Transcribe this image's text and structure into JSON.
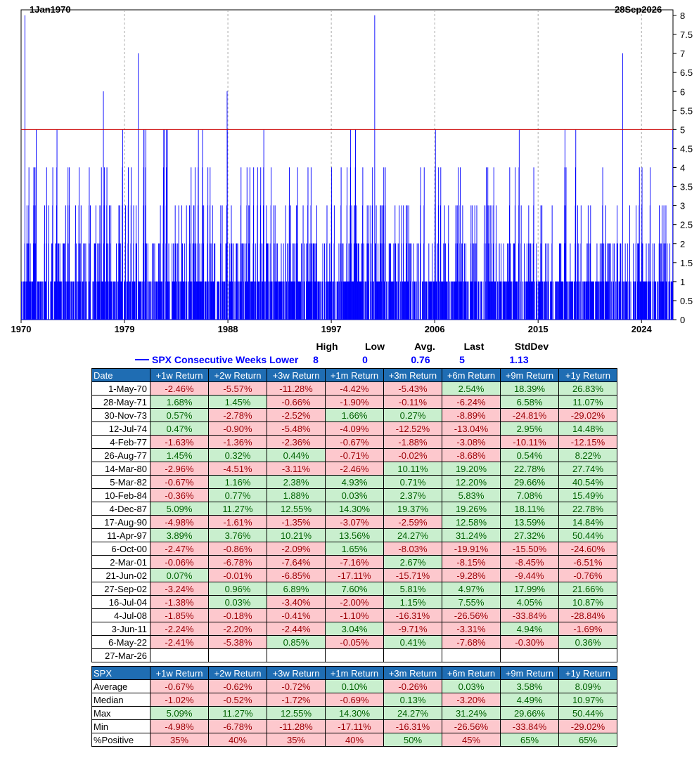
{
  "header": {
    "start_date": "1Jan1970",
    "end_date": "28Sep2026"
  },
  "legend": {
    "series_name": "SPX Consecutive Weeks Lower",
    "stat_labels": [
      "High",
      "Low",
      "Avg.",
      "Last",
      "StdDev"
    ],
    "stat_values": [
      "8",
      "0",
      "0.76",
      "5",
      "1.13"
    ]
  },
  "colors": {
    "series": "#0000ff",
    "threshold": "#cc0000",
    "header": "#1f6db3",
    "positive_bg": "#c9efce",
    "negative_bg": "#fdc8cd"
  },
  "chart_data": {
    "type": "bar",
    "title": "SPX Consecutive Weeks Lower",
    "x_range": [
      1970,
      2026.74
    ],
    "x_ticks": [
      1970,
      1979,
      1988,
      1997,
      2006,
      2015,
      2024
    ],
    "ylim": [
      0,
      8
    ],
    "y_ticks": [
      "0",
      "0.5",
      "1",
      "1.5",
      "2",
      "2.5",
      "3",
      "3.5",
      "4",
      "4.5",
      "5",
      "5.5",
      "6",
      "6.5",
      "7",
      "7.5",
      "8"
    ],
    "threshold": 5,
    "grid": "vertical dashed at x ticks",
    "peaks": [
      {
        "x": 1970.33,
        "value": 8
      },
      {
        "x": 1977.15,
        "value": 6
      },
      {
        "x": 1980.2,
        "value": 7
      },
      {
        "x": 1987.93,
        "value": 6
      },
      {
        "x": 2000.77,
        "value": 8
      },
      {
        "x": 2022.35,
        "value": 7
      }
    ]
  },
  "table1": {
    "headers": [
      "Date",
      "+1w Return",
      "+2w Return",
      "+3w Return",
      "+1m Return",
      "+3m Return",
      "+6m Return",
      "+9m Return",
      "+1y Return"
    ],
    "rows": [
      {
        "date": "1-May-70",
        "values": [
          "-2.46%",
          "-5.57%",
          "-11.28%",
          "-4.42%",
          "-5.43%",
          "2.54%",
          "18.39%",
          "26.83%"
        ]
      },
      {
        "date": "28-May-71",
        "values": [
          "1.68%",
          "1.45%",
          "-0.66%",
          "-1.90%",
          "-0.11%",
          "-6.24%",
          "6.58%",
          "11.07%"
        ]
      },
      {
        "date": "30-Nov-73",
        "values": [
          "0.57%",
          "-2.78%",
          "-2.52%",
          "1.66%",
          "0.27%",
          "-8.89%",
          "-24.81%",
          "-29.02%"
        ]
      },
      {
        "date": "12-Jul-74",
        "values": [
          "0.47%",
          "-0.90%",
          "-5.48%",
          "-4.09%",
          "-12.52%",
          "-13.04%",
          "2.95%",
          "14.48%"
        ]
      },
      {
        "date": "4-Feb-77",
        "values": [
          "-1.63%",
          "-1.36%",
          "-2.36%",
          "-0.67%",
          "-1.88%",
          "-3.08%",
          "-10.11%",
          "-12.15%"
        ]
      },
      {
        "date": "26-Aug-77",
        "values": [
          "1.45%",
          "0.32%",
          "0.44%",
          "-0.71%",
          "-0.02%",
          "-8.68%",
          "0.54%",
          "8.22%"
        ]
      },
      {
        "date": "14-Mar-80",
        "values": [
          "-2.96%",
          "-4.51%",
          "-3.11%",
          "-2.46%",
          "10.11%",
          "19.20%",
          "22.78%",
          "27.74%"
        ]
      },
      {
        "date": "5-Mar-82",
        "values": [
          "-0.67%",
          "1.16%",
          "2.38%",
          "4.93%",
          "0.71%",
          "12.20%",
          "29.66%",
          "40.54%"
        ]
      },
      {
        "date": "10-Feb-84",
        "values": [
          "-0.36%",
          "0.77%",
          "1.88%",
          "0.03%",
          "2.37%",
          "5.83%",
          "7.08%",
          "15.49%"
        ]
      },
      {
        "date": "4-Dec-87",
        "values": [
          "5.09%",
          "11.27%",
          "12.55%",
          "14.30%",
          "19.37%",
          "19.26%",
          "18.11%",
          "22.78%"
        ]
      },
      {
        "date": "17-Aug-90",
        "values": [
          "-4.98%",
          "-1.61%",
          "-1.35%",
          "-3.07%",
          "-2.59%",
          "12.58%",
          "13.59%",
          "14.84%"
        ]
      },
      {
        "date": "11-Apr-97",
        "values": [
          "3.89%",
          "3.76%",
          "10.21%",
          "13.56%",
          "24.27%",
          "31.24%",
          "27.32%",
          "50.44%"
        ]
      },
      {
        "date": "6-Oct-00",
        "values": [
          "-2.47%",
          "-0.86%",
          "-2.09%",
          "1.65%",
          "-8.03%",
          "-19.91%",
          "-15.50%",
          "-24.60%"
        ]
      },
      {
        "date": "2-Mar-01",
        "values": [
          "-0.06%",
          "-6.78%",
          "-7.64%",
          "-7.16%",
          "2.67%",
          "-8.15%",
          "-8.45%",
          "-6.51%"
        ]
      },
      {
        "date": "21-Jun-02",
        "values": [
          "0.07%",
          "-0.01%",
          "-6.85%",
          "-17.11%",
          "-15.71%",
          "-9.28%",
          "-9.44%",
          "-0.76%"
        ]
      },
      {
        "date": "27-Sep-02",
        "values": [
          "-3.24%",
          "0.96%",
          "6.89%",
          "7.60%",
          "5.81%",
          "4.97%",
          "17.99%",
          "21.66%"
        ]
      },
      {
        "date": "16-Jul-04",
        "values": [
          "-1.38%",
          "0.03%",
          "-3.40%",
          "-2.00%",
          "1.15%",
          "7.55%",
          "4.05%",
          "10.87%"
        ]
      },
      {
        "date": "4-Jul-08",
        "values": [
          "-1.85%",
          "-0.18%",
          "-0.41%",
          "-1.10%",
          "-16.31%",
          "-26.56%",
          "-33.84%",
          "-28.84%"
        ]
      },
      {
        "date": "3-Jun-11",
        "values": [
          "-2.24%",
          "-2.20%",
          "-2.44%",
          "3.04%",
          "-9.71%",
          "-3.31%",
          "4.94%",
          "-1.69%"
        ]
      },
      {
        "date": "6-May-22",
        "values": [
          "-2.41%",
          "-5.38%",
          "0.85%",
          "-0.05%",
          "0.41%",
          "-7.68%",
          "-0.30%",
          "0.36%"
        ]
      },
      {
        "date": "27-Mar-26",
        "values": [
          "",
          "",
          "",
          "",
          "",
          "",
          "",
          ""
        ]
      }
    ]
  },
  "table2": {
    "headers": [
      "SPX",
      "+1w Return",
      "+2w Return",
      "+3w Return",
      "+1m Return",
      "+3m Return",
      "+6m Return",
      "+9m Return",
      "+1y Return"
    ],
    "rows": [
      {
        "label": "Average",
        "values": [
          "-0.67%",
          "-0.62%",
          "-0.72%",
          "0.10%",
          "-0.26%",
          "0.03%",
          "3.58%",
          "8.09%"
        ]
      },
      {
        "label": "Median",
        "values": [
          "-1.02%",
          "-0.52%",
          "-1.72%",
          "-0.69%",
          "0.13%",
          "-3.20%",
          "4.49%",
          "10.97%"
        ]
      },
      {
        "label": "Max",
        "values": [
          "5.09%",
          "11.27%",
          "12.55%",
          "14.30%",
          "24.27%",
          "31.24%",
          "29.66%",
          "50.44%"
        ]
      },
      {
        "label": "Min",
        "values": [
          "-4.98%",
          "-6.78%",
          "-11.28%",
          "-17.11%",
          "-16.31%",
          "-26.56%",
          "-33.84%",
          "-29.02%"
        ]
      },
      {
        "label": "%Positive",
        "values": [
          "35%",
          "40%",
          "35%",
          "40%",
          "50%",
          "45%",
          "65%",
          "65%"
        ],
        "posThreshold": 50
      }
    ]
  }
}
